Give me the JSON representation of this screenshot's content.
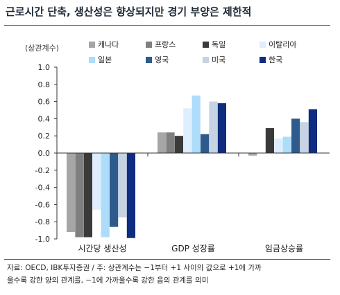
{
  "title": "근로시간 단축, 생산성은 향상되지만 경기 부양은 제한적",
  "chart_data": {
    "type": "bar",
    "ylabel": "(상관계수)",
    "ylim": [
      -1.0,
      1.0
    ],
    "yticks": [
      "1.0",
      "0.8",
      "0.6",
      "0.4",
      "0.2",
      "0.0",
      "-0.2",
      "-0.4",
      "-0.6",
      "-0.8",
      "-1.0"
    ],
    "ytick_values": [
      1.0,
      0.8,
      0.6,
      0.4,
      0.2,
      0.0,
      -0.2,
      -0.4,
      -0.6,
      -0.8,
      -1.0
    ],
    "categories": [
      "시간당 생산성",
      "GDP 성장률",
      "임금상승률"
    ],
    "series": [
      {
        "name": "캐나다",
        "color": "#a6a6a6",
        "values": [
          -0.92,
          0.24,
          -0.03
        ]
      },
      {
        "name": "프랑스",
        "color": "#7f7f7f",
        "values": [
          -0.98,
          0.24,
          0.0
        ]
      },
      {
        "name": "독일",
        "color": "#3a3a3a",
        "values": [
          -0.98,
          0.2,
          0.29
        ]
      },
      {
        "name": "이탈리아",
        "color": "#ddeeff",
        "values": [
          -0.66,
          0.52,
          0.17
        ]
      },
      {
        "name": "일본",
        "color": "#aedcfb",
        "values": [
          -0.98,
          0.67,
          0.19
        ]
      },
      {
        "name": "영국",
        "color": "#2e5a8c",
        "values": [
          -0.86,
          0.22,
          0.4
        ]
      },
      {
        "name": "미국",
        "color": "#c5d3e3",
        "values": [
          -0.75,
          0.6,
          0.36
        ]
      },
      {
        "name": "한국",
        "color": "#0e2c80",
        "values": [
          -0.99,
          0.58,
          0.51
        ]
      }
    ]
  },
  "source": {
    "line1": "자료: OECD, IBK투자증권 / 주: 상관계수는 −1부터 +1 사이의 값으로 +1에 가까",
    "line2": "울수록 강한 양의 관계를, −1에 가까울수록 강한 음의 관계를 의미"
  }
}
